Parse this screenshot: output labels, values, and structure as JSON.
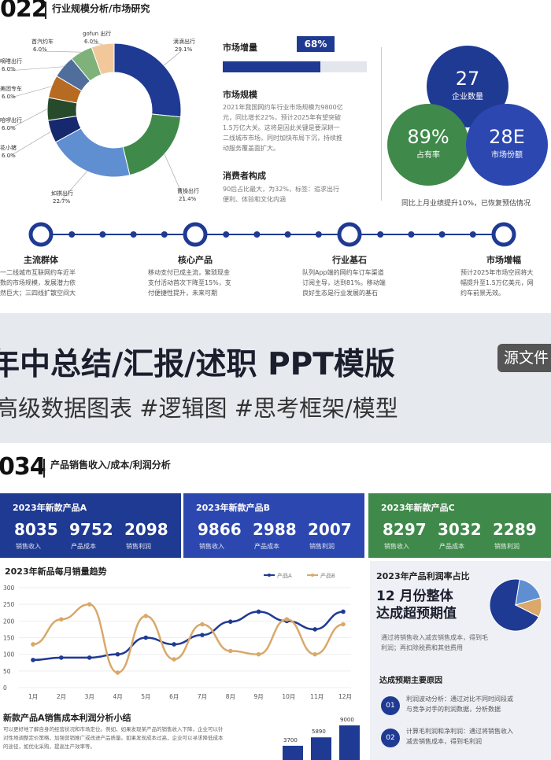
{
  "top": {
    "hdr_num": "022",
    "hdr_title": "行业规模分析/市场研究",
    "donut": [
      {
        "name": "滴滴出行",
        "pct": "29.1%",
        "value": 29.1,
        "color": "#1f3a93"
      },
      {
        "name": "曹操出行",
        "pct": "21.4%",
        "value": 21.4,
        "color": "#3f8a4a"
      },
      {
        "name": "如祺出行",
        "pct": "22.7%",
        "value": 22.7,
        "color": "#5f8fd0"
      },
      {
        "name": "花小猪",
        "pct": "6.0%",
        "value": 6.0,
        "color": "#16286e"
      },
      {
        "name": "哈啰出行",
        "pct": "6.0%",
        "value": 6.0,
        "color": "#274a2b"
      },
      {
        "name": "美团专车",
        "pct": "6.0%",
        "value": 6.0,
        "color": "#b76a21"
      },
      {
        "name": "嘀嗒出行",
        "pct": "6.0%",
        "value": 6.0,
        "color": "#4f6e9c"
      },
      {
        "name": "首汽约车",
        "pct": "6.0%",
        "value": 6.0,
        "color": "#7fb27a"
      },
      {
        "name": "gofun 出行",
        "pct": "6.0%",
        "value": 6.0,
        "color": "#f2c89a"
      }
    ],
    "market_growth": {
      "title": "市场增量",
      "pct_label": "68%",
      "value": 0.68
    },
    "market_size": {
      "title": "市场规模",
      "text": [
        "2021年我国网约车行业市场规模为9800亿",
        "元，同比增长22%，预计2025年有望突破",
        "1.5万亿大关。这将是因此关键是要深耕一",
        "二线城市市场，同时加快布局下沉，持续推",
        "动服务覆盖面扩大。"
      ]
    },
    "consumer": {
      "title": "消费者构成",
      "text": [
        "90后占比最大，为32%，标签：追求出行",
        "便利、体验和文化内涵"
      ]
    },
    "bubbles": [
      {
        "num": "27",
        "label": "企业数量"
      },
      {
        "num": "89%",
        "label": "占有率"
      },
      {
        "num": "28E",
        "label": "市场份额"
      }
    ],
    "bubble_note": "同比上月业绩提升10%，已恢复预估情况",
    "timeline": [
      {
        "label": "主流群体",
        "desc": [
          "一二线城市互联网约车近半",
          "数的市场规模，发展潜力依",
          "然巨大；三四线扩散空间大"
        ]
      },
      {
        "label": "核心产品",
        "desc": [
          "移动支付已成主流，繁琐现金",
          "支付活动首次下降至15%，支",
          "付便捷性提升，未来可期"
        ]
      },
      {
        "label": "行业基石",
        "desc": [
          "队列App端的网约车订车渠道",
          "订阅主导，达到81%。移动端",
          "良好生态是行业发展的基石"
        ]
      },
      {
        "label": "市场增幅",
        "desc": [
          "预计2025年市场空间将大",
          "幅提升至1.5万亿美元，网",
          "约车前景无效。"
        ]
      }
    ]
  },
  "banner": {
    "line1": "年中总结/汇报/述职 PPT模版",
    "line2": "高级数据图表 #逻辑图 #思考框架/模型",
    "tag": "源文件"
  },
  "bottom": {
    "hdr_num": "034",
    "hdr_title": "产品销售收入/成本/利润分析",
    "cards": [
      {
        "title": "2023年新款产品A",
        "color": "#1f3a93",
        "nums": [
          "8035",
          "9752",
          "2098"
        ],
        "labels": [
          "销售收入",
          "产品成本",
          "销售利润"
        ]
      },
      {
        "title": "2023年新款产品B",
        "color": "#2c48b0",
        "nums": [
          "9866",
          "2988",
          "2007"
        ],
        "labels": [
          "销售收入",
          "产品成本",
          "销售利润"
        ]
      },
      {
        "title": "2023年新款产品C",
        "color": "#3f8a4a",
        "nums": [
          "8297",
          "3032",
          "2289"
        ],
        "labels": [
          "销售收入",
          "产品成本",
          "销售利润"
        ]
      }
    ],
    "line_title": "2023年新品每月销量趋势",
    "chart_data": {
      "type": "line",
      "x": [
        "1月",
        "2月",
        "3月",
        "4月",
        "5月",
        "6月",
        "7月",
        "8月",
        "9月",
        "10月",
        "11月",
        "12月"
      ],
      "ylim": [
        0,
        300
      ],
      "yticks": [
        "300",
        "250",
        "200",
        "150",
        "100",
        "50",
        "0"
      ],
      "series": [
        {
          "name": "产品A",
          "color": "#1f3a93",
          "values": [
            83,
            90,
            90,
            100,
            150,
            130,
            158,
            198,
            228,
            200,
            175,
            228
          ]
        },
        {
          "name": "产品B",
          "color": "#d9a86a",
          "values": [
            130,
            205,
            250,
            45,
            215,
            85,
            190,
            110,
            100,
            205,
            100,
            190
          ]
        }
      ]
    },
    "pie_panel": {
      "title": "2023年产品利润率占比",
      "big": [
        "12 月份整体",
        "达成超预期值"
      ],
      "desc": [
        "通过将销售收入减去销售成本，得到毛",
        "利润；再扣除税费和其他费用"
      ],
      "pie": [
        {
          "value": 70,
          "color": "#1f3a93"
        },
        {
          "value": 18,
          "color": "#5f8fd0"
        },
        {
          "value": 12,
          "color": "#d9a86a"
        }
      ],
      "reasons_title": "达成预期主要原因",
      "reasons": [
        {
          "n": "01",
          "text": [
            "利润波动分析：通过对比不同时间段或",
            "与竞争对手的利润数据，分析数据"
          ]
        },
        {
          "n": "02",
          "text": [
            "计算毛利润和净利润：通过将销售收入",
            "减去销售成本，得到毛利润"
          ]
        }
      ]
    },
    "summary": {
      "title": "新款产品A销售成本利润分析小结",
      "text": [
        "可以更好地了解自身的经营状况和市场定位。例如，如果发现某产品的销售收入下降，企业可以针",
        "对性地调整定价策略，加强营销推广或改进产品质量。如果发现成本过高，企业可以寻求降低成本",
        "的途径，如优化采购，提高生产效率等。"
      ]
    },
    "mini_bars": [
      {
        "label": "3700",
        "value": 3700
      },
      {
        "label": "5890",
        "value": 5890
      },
      {
        "label": "9000",
        "value": 9000
      }
    ]
  }
}
